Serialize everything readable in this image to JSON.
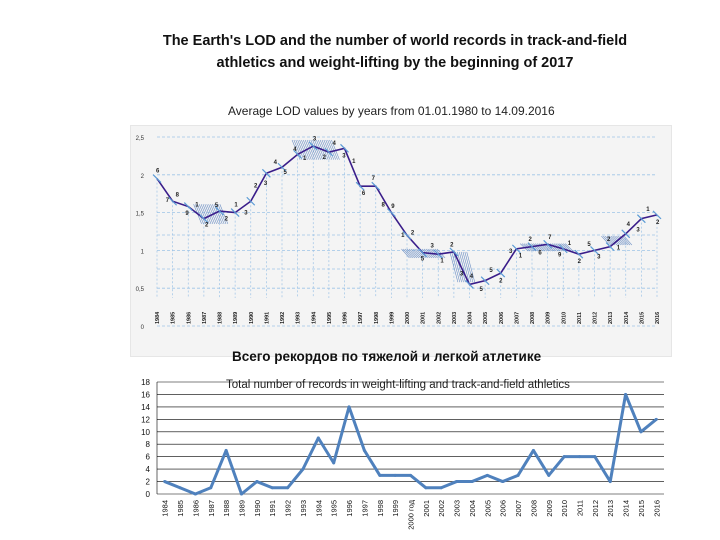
{
  "page": {
    "title_line1": "The Earth's LOD and the number of world records in track-and-field",
    "title_line2": "athletics and weight-lifting by the beginning of 2017"
  },
  "colors": {
    "lod_line": "#3a1d8a",
    "lod_tick": "#5b9bd5",
    "lod_grid": "#9dc3e6",
    "records_line": "#4f81bd",
    "grid": "#000000",
    "hatch": "#6d8fc4"
  },
  "chart_data": [
    {
      "type": "line",
      "title": "Average LOD values by years from 01.01.1980 to 14.09.2016",
      "xlabel": "",
      "ylabel": "",
      "ylim": [
        0,
        2.5
      ],
      "yticks": [
        "0",
        "0,5",
        "1",
        "1,5",
        "2",
        "2,5"
      ],
      "categories": [
        "1984",
        "1985",
        "1986",
        "1987",
        "1988",
        "1989",
        "1990",
        "1991",
        "1992",
        "1993",
        "1994",
        "1995",
        "1996",
        "1997",
        "1998",
        "1999",
        "2000",
        "2001",
        "2002",
        "2003",
        "2004",
        "2005",
        "2006",
        "2007",
        "2008",
        "2009",
        "2010",
        "2011",
        "2012",
        "2013",
        "2014",
        "2015",
        "2016"
      ],
      "values": [
        1.95,
        1.65,
        1.58,
        1.42,
        1.52,
        1.5,
        1.65,
        2.02,
        2.1,
        2.27,
        2.38,
        2.3,
        2.35,
        1.85,
        1.85,
        1.5,
        1.2,
        0.97,
        0.95,
        0.98,
        0.55,
        0.6,
        0.7,
        1.02,
        1.05,
        1.08,
        1.02,
        0.95,
        1.0,
        1.05,
        1.22,
        1.42,
        1.47
      ],
      "annotations": [
        "6",
        "7",
        "8",
        "9",
        "1",
        "2",
        "5",
        "2",
        "1",
        "3",
        "2",
        "3",
        "4",
        "5",
        "4",
        "1",
        "3",
        "2",
        "4",
        "3",
        "1",
        "6",
        "7",
        "8",
        "9",
        "1",
        "2",
        "5",
        "3",
        "1",
        "2",
        "3",
        "4",
        "5",
        "5",
        "2",
        "3",
        "1",
        "2",
        "6",
        "7",
        "9",
        "1",
        "2",
        "5",
        "3",
        "2",
        "1",
        "4",
        "3",
        "1",
        "2"
      ]
    },
    {
      "type": "line",
      "title": "Total number of records in weight-lifting and track-and-field athletics",
      "heading": "Всего рекордов по тяжелой и легкой атлетике",
      "xlabel": "",
      "ylabel": "",
      "ylim": [
        0,
        18
      ],
      "yticks": [
        "0",
        "2",
        "4",
        "6",
        "8",
        "10",
        "12",
        "14",
        "16",
        "18"
      ],
      "categories": [
        "1984",
        "1985",
        "1986",
        "1987",
        "1988",
        "1989",
        "1990",
        "1991",
        "1992",
        "1993",
        "1994",
        "1995",
        "1996",
        "1997",
        "1998",
        "1999",
        "2000 год",
        "2001",
        "2002",
        "2003",
        "2004",
        "2005",
        "2006",
        "2007",
        "2008",
        "2009",
        "2010",
        "2011",
        "2012",
        "2013",
        "2014",
        "2015",
        "2016"
      ],
      "values": [
        2,
        1,
        0,
        1,
        7,
        0,
        2,
        1,
        1,
        4,
        9,
        5,
        14,
        7,
        3,
        3,
        3,
        1,
        1,
        2,
        2,
        3,
        2,
        3,
        7,
        3,
        6,
        6,
        6,
        2,
        16,
        10,
        12
      ]
    }
  ]
}
